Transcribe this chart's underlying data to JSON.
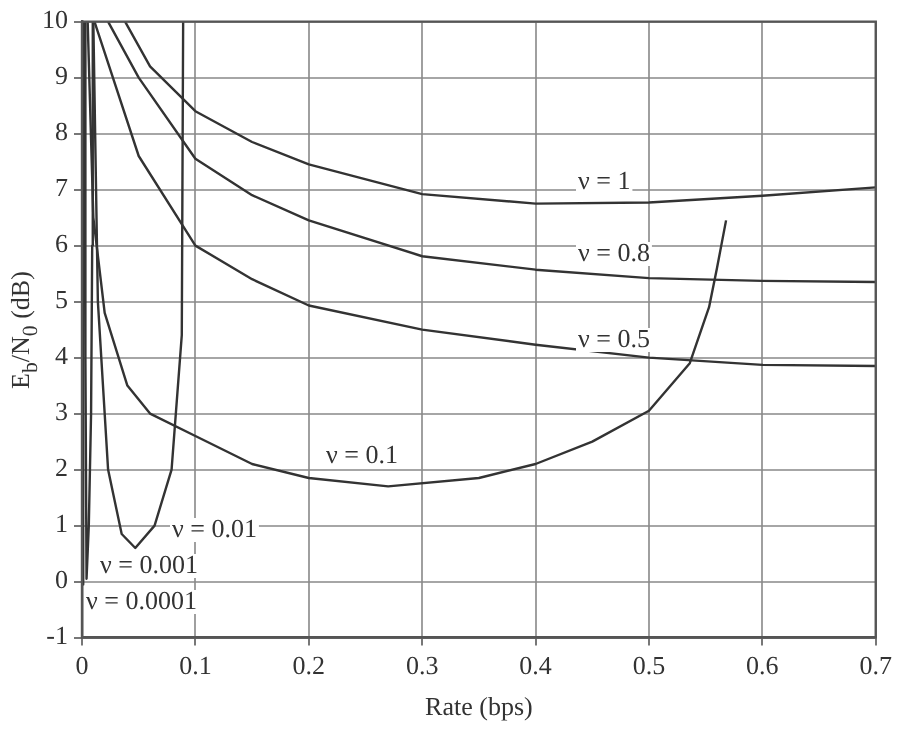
{
  "chart_data": {
    "type": "line",
    "xlabel": "Rate (bps)",
    "ylabel": "E$_{b}$/N$_{0}$ (dB)",
    "xlim": [
      0,
      0.7
    ],
    "xticks": [
      0,
      0.1,
      0.2,
      0.3,
      0.4,
      0.5,
      0.6,
      0.7
    ],
    "ylim": [
      -1,
      10
    ],
    "yticks": [
      -1,
      0,
      1,
      2,
      3,
      4,
      5,
      6,
      7,
      8,
      9,
      10
    ],
    "grid": true,
    "legend": false,
    "marker": "none",
    "line_style": "solid",
    "series": [
      {
        "color": "#333333",
        "x": [
          0.038,
          0.06,
          0.1,
          0.15,
          0.2,
          0.3,
          0.4,
          0.5,
          0.6,
          0.7
        ],
        "values": [
          10,
          9.2,
          8.4,
          7.85,
          7.45,
          6.92,
          6.75,
          6.77,
          6.89,
          7.04
        ]
      },
      {
        "color": "#333333",
        "x": [
          0.023,
          0.05,
          0.1,
          0.15,
          0.2,
          0.3,
          0.4,
          0.5,
          0.6,
          0.7
        ],
        "values": [
          10,
          9.0,
          7.55,
          6.9,
          6.45,
          5.81,
          5.57,
          5.42,
          5.37,
          5.35
        ]
      },
      {
        "color": "#333333",
        "x": [
          0.011,
          0.05,
          0.1,
          0.15,
          0.2,
          0.3,
          0.4,
          0.5,
          0.6,
          0.7
        ],
        "values": [
          10,
          7.6,
          6.0,
          5.4,
          4.93,
          4.5,
          4.23,
          4.0,
          3.87,
          3.85
        ]
      },
      {
        "color": "#333333",
        "x": [
          0.005,
          0.01,
          0.02,
          0.04,
          0.06,
          0.1,
          0.15,
          0.2,
          0.27,
          0.35,
          0.4,
          0.45,
          0.5,
          0.536,
          0.553,
          0.56,
          0.568
        ],
        "values": [
          10,
          6.5,
          4.8,
          3.5,
          3.0,
          2.6,
          2.1,
          1.85,
          1.7,
          1.85,
          2.1,
          2.5,
          3.05,
          3.9,
          4.9,
          5.6,
          6.45
        ]
      },
      {
        "color": "#333333",
        "x": [
          0.01,
          0.014,
          0.023,
          0.035,
          0.047,
          0.064,
          0.079,
          0.088,
          0.0892
        ],
        "values": [
          10,
          5,
          2,
          0.85,
          0.6,
          1.0,
          2.0,
          4.4,
          10
        ]
      },
      {
        "color": "#333333",
        "x": [
          0.002,
          0.003,
          0.004,
          0.006,
          0.008,
          0.009,
          0.0095
        ],
        "values": [
          10,
          4,
          0.05,
          1,
          3,
          6,
          10
        ]
      },
      {
        "color": "#333333",
        "x": [
          0.0003,
          0.0006,
          0.0009,
          0.0012,
          0.0015
        ],
        "values": [
          10,
          2,
          -0.05,
          2,
          10
        ]
      }
    ],
    "annotations": [
      "ν = 1",
      "ν = 0.8",
      "ν = 0.5",
      "ν = 0.1",
      "ν = 0.01",
      "ν = 0.001",
      "ν = 0.0001"
    ]
  }
}
